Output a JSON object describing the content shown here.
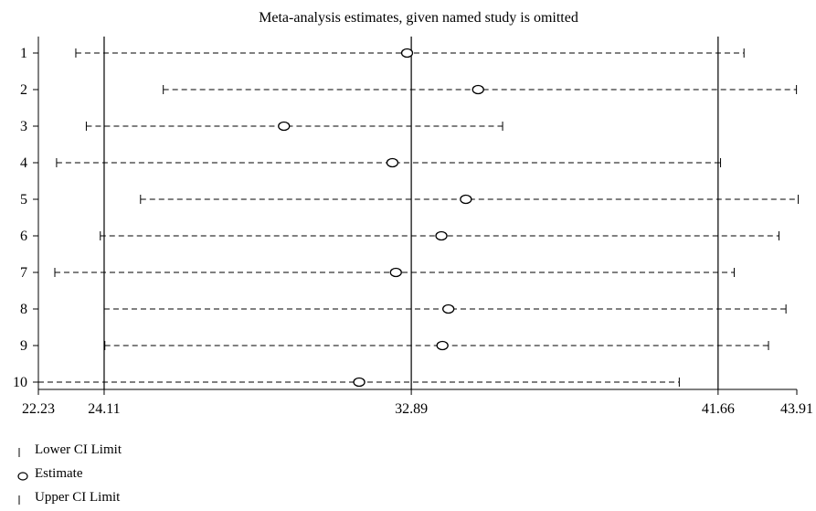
{
  "chart_data": {
    "type": "scatter",
    "title": "Meta-analysis estimates, given named study is omitted",
    "x_ticks": [
      22.23,
      24.11,
      32.89,
      41.66,
      43.91
    ],
    "x_tick_labels": [
      "22.23",
      "24.11",
      "32.89",
      "41.66",
      "43.91"
    ],
    "xlim": [
      22.23,
      43.91
    ],
    "reference_lines": [
      24.11,
      32.89,
      41.66
    ],
    "studies": [
      {
        "label": "1",
        "lower": 23.3,
        "estimate": 32.77,
        "upper": 42.4
      },
      {
        "label": "2",
        "lower": 25.8,
        "estimate": 34.8,
        "upper": 43.9
      },
      {
        "label": "3",
        "lower": 23.6,
        "estimate": 29.25,
        "upper": 35.5
      },
      {
        "label": "4",
        "lower": 22.75,
        "estimate": 32.35,
        "upper": 41.73
      },
      {
        "label": "5",
        "lower": 25.15,
        "estimate": 34.45,
        "upper": 43.95
      },
      {
        "label": "6",
        "lower": 24.0,
        "estimate": 33.75,
        "upper": 43.4
      },
      {
        "label": "7",
        "lower": 22.7,
        "estimate": 32.45,
        "upper": 42.12
      },
      {
        "label": "8",
        "lower": 24.11,
        "estimate": 33.95,
        "upper": 43.6
      },
      {
        "label": "9",
        "lower": 24.13,
        "estimate": 33.78,
        "upper": 43.1
      },
      {
        "label": "10",
        "lower": 22.23,
        "estimate": 31.4,
        "upper": 40.55
      }
    ],
    "legend": [
      {
        "symbol": "lower-ci-tick",
        "label": "Lower CI Limit"
      },
      {
        "symbol": "estimate-circle",
        "label": "Estimate"
      },
      {
        "symbol": "upper-ci-tick",
        "label": "Upper CI Limit"
      }
    ],
    "legend_placement": "bottom-left",
    "grid": false
  }
}
